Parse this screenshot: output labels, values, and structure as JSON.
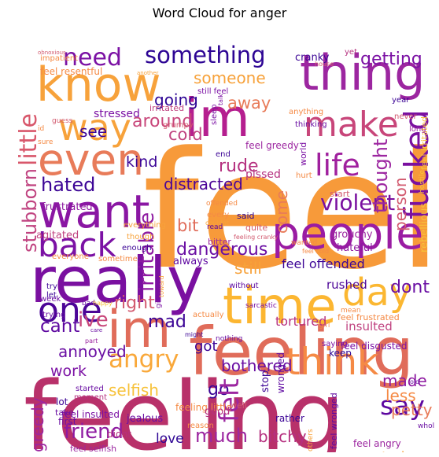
{
  "chart_data": {
    "type": "wordcloud",
    "title": "Word Cloud for anger",
    "words": [
      {
        "text": "feel",
        "color": "#f79a3a"
      },
      {
        "text": "feeling",
        "color": "#b8316a"
      },
      {
        "text": "feeling",
        "color": "#e06c5a"
      },
      {
        "text": "really",
        "color": "#7a10a0"
      },
      {
        "text": "people",
        "color": "#9a1ca3"
      },
      {
        "text": "know",
        "color": "#f7a23b"
      },
      {
        "text": "thing",
        "color": "#9c26a0"
      },
      {
        "text": "im",
        "color": "#b51f8f"
      },
      {
        "text": "im",
        "color": "#e06c5a"
      },
      {
        "text": "time",
        "color": "#fcb631"
      },
      {
        "text": "want",
        "color": "#8a16a3"
      },
      {
        "text": "even",
        "color": "#e87b59"
      },
      {
        "text": "way",
        "color": "#f7a23b"
      },
      {
        "text": "make",
        "color": "#c8467a"
      },
      {
        "text": "back",
        "color": "#7b11a4"
      },
      {
        "text": "day",
        "color": "#fbb731"
      },
      {
        "text": "one",
        "color": "#4c0597"
      },
      {
        "text": "think",
        "color": "#f58a45"
      },
      {
        "text": "life",
        "color": "#a0209e"
      },
      {
        "text": "something",
        "color": "#2d0594"
      },
      {
        "text": "need",
        "color": "#7b11a4"
      },
      {
        "text": "fucked",
        "color": "#7a10a0"
      },
      {
        "text": "angry",
        "color": "#f9a83a"
      },
      {
        "text": "say",
        "color": "#5d07a0"
      },
      {
        "text": "little",
        "color": "#d8576b"
      },
      {
        "text": "violent",
        "color": "#7a10a0"
      },
      {
        "text": "irritable",
        "color": "#8e1aa1"
      },
      {
        "text": "hated",
        "color": "#3c0596"
      },
      {
        "text": "dangerous",
        "color": "#6a0fa3"
      },
      {
        "text": "much",
        "color": "#9c26a0"
      },
      {
        "text": "friend",
        "color": "#8e1aa1"
      },
      {
        "text": "go",
        "color": "#3c0596"
      },
      {
        "text": "stubborn",
        "color": "#c04380"
      },
      {
        "text": "getting",
        "color": "#7b11a4"
      },
      {
        "text": "someone",
        "color": "#f7a23b"
      },
      {
        "text": "around",
        "color": "#c8467a"
      },
      {
        "text": "rude",
        "color": "#b5307f"
      },
      {
        "text": "distracted",
        "color": "#4c0597"
      },
      {
        "text": "kind",
        "color": "#3c0596"
      },
      {
        "text": "cold",
        "color": "#c04380"
      },
      {
        "text": "going",
        "color": "#2d0594"
      },
      {
        "text": "see",
        "color": "#3c0596"
      },
      {
        "text": "away",
        "color": "#e87b59"
      },
      {
        "text": "thought",
        "color": "#9c26a0"
      },
      {
        "text": "person",
        "color": "#d25a6f"
      },
      {
        "text": "come",
        "color": "#e87b59"
      },
      {
        "text": "bit",
        "color": "#e06c5a"
      },
      {
        "text": "ive",
        "color": "#c8467a"
      },
      {
        "text": "cant",
        "color": "#5d07a0"
      },
      {
        "text": "annoyed",
        "color": "#6a0fa3"
      },
      {
        "text": "right",
        "color": "#d25a6f"
      },
      {
        "text": "mad",
        "color": "#3c0596"
      },
      {
        "text": "dont",
        "color": "#6a0fa3"
      },
      {
        "text": "still",
        "color": "#f7a23b"
      },
      {
        "text": "feel offended",
        "color": "#3c0596"
      },
      {
        "text": "got",
        "color": "#3c0596"
      },
      {
        "text": "bothered",
        "color": "#6a0fa3"
      },
      {
        "text": "selfish",
        "color": "#f7c23b"
      },
      {
        "text": "work",
        "color": "#7b11a4"
      },
      {
        "text": "made",
        "color": "#8e1aa1"
      },
      {
        "text": "less",
        "color": "#f58a45"
      },
      {
        "text": "petty",
        "color": "#e87b59"
      },
      {
        "text": "felt",
        "color": "#9c26a0"
      },
      {
        "text": "greedy",
        "color": "#9c26a0"
      },
      {
        "text": "bitchy",
        "color": "#b5307f"
      },
      {
        "text": "love",
        "color": "#2d0594"
      },
      {
        "text": "today",
        "color": "#f7a23b"
      },
      {
        "text": "tortured",
        "color": "#b5307f"
      },
      {
        "text": "insulted",
        "color": "#c04380"
      },
      {
        "text": "rushed",
        "color": "#4c0597"
      },
      {
        "text": "stressed",
        "color": "#7b11a4"
      },
      {
        "text": "cranky",
        "color": "#3c0596"
      },
      {
        "text": "grouchy",
        "color": "#9c26a0"
      },
      {
        "text": "hateful",
        "color": "#8e1aa1"
      },
      {
        "text": "frustrated",
        "color": "#8e1aa1"
      },
      {
        "text": "agitated",
        "color": "#c04380"
      },
      {
        "text": "always",
        "color": "#5d07a0"
      },
      {
        "text": "pissed",
        "color": "#b5307f"
      },
      {
        "text": "feel resentful",
        "color": "#f58a45"
      },
      {
        "text": "impatient",
        "color": "#f58a45"
      },
      {
        "text": "irritated",
        "color": "#c04380"
      },
      {
        "text": "grumpy",
        "color": "#d25a6f"
      },
      {
        "text": "still feel",
        "color": "#7b11a4"
      },
      {
        "text": "feel greedy",
        "color": "#9c26a0"
      },
      {
        "text": "feel irritated",
        "color": "#f7c23b"
      },
      {
        "text": "rebellious",
        "color": "#f7c23b"
      },
      {
        "text": "feel frustrated",
        "color": "#f58a45"
      },
      {
        "text": "feel disgusted",
        "color": "#7b11a4"
      },
      {
        "text": "feel insulted",
        "color": "#7b11a4"
      },
      {
        "text": "feel wronged",
        "color": "#5d07a0"
      },
      {
        "text": "feel angry",
        "color": "#9c26a0"
      },
      {
        "text": "feeling little",
        "color": "#f58a45"
      },
      {
        "text": "feel selfish",
        "color": "#9c26a0"
      },
      {
        "text": "wronged",
        "color": "#5d07a0"
      },
      {
        "text": "jealous",
        "color": "#6a0fa3"
      },
      {
        "text": "rather",
        "color": "#3c0596"
      },
      {
        "text": "good",
        "color": "#b5307f"
      },
      {
        "text": "stop",
        "color": "#3c0596"
      },
      {
        "text": "well",
        "color": "#d25a6f"
      },
      {
        "text": "year",
        "color": "#3c0596"
      },
      {
        "text": "never",
        "color": "#d25a6f"
      },
      {
        "text": "long",
        "color": "#9c26a0"
      },
      {
        "text": "thinking",
        "color": "#6a0fa3"
      },
      {
        "text": "anything",
        "color": "#f58a45"
      },
      {
        "text": "world",
        "color": "#7b11a4"
      },
      {
        "text": "hurt",
        "color": "#f58a45"
      },
      {
        "text": "start",
        "color": "#d25a6f"
      },
      {
        "text": "said",
        "color": "#2d0594"
      },
      {
        "text": "quite",
        "color": "#d25a6f"
      },
      {
        "text": "wanted",
        "color": "#f58a45"
      },
      {
        "text": "every",
        "color": "#f58a45"
      },
      {
        "text": "everything",
        "color": "#f7a23b"
      },
      {
        "text": "though",
        "color": "#f7a23b"
      },
      {
        "text": "enough",
        "color": "#3c0596"
      },
      {
        "text": "bitter",
        "color": "#9c26a0"
      },
      {
        "text": "sometime",
        "color": "#f58a45"
      },
      {
        "text": "everyone",
        "color": "#f58a45"
      },
      {
        "text": "without",
        "color": "#5d07a0"
      },
      {
        "text": "try",
        "color": "#3c0596"
      },
      {
        "text": "let",
        "color": "#3c0596"
      },
      {
        "text": "week",
        "color": "#6a0fa3"
      },
      {
        "text": "trying",
        "color": "#6a0fa3"
      },
      {
        "text": "bad",
        "color": "#6a0fa3"
      },
      {
        "text": "happy",
        "color": "#f7c23b"
      },
      {
        "text": "actually",
        "color": "#f58a45"
      },
      {
        "text": "sarcastic",
        "color": "#7b11a4"
      },
      {
        "text": "mean",
        "color": "#f58a45"
      },
      {
        "text": "guess",
        "color": "#d25a6f"
      },
      {
        "text": "saying",
        "color": "#7b11a4"
      },
      {
        "text": "keep",
        "color": "#2d0594"
      },
      {
        "text": "girl",
        "color": "#f58a45"
      },
      {
        "text": "started",
        "color": "#6a0fa3"
      },
      {
        "text": "moment",
        "color": "#b5307f"
      },
      {
        "text": "lot",
        "color": "#3c0596"
      },
      {
        "text": "take",
        "color": "#6a0fa3"
      },
      {
        "text": "first",
        "color": "#6a0fa3"
      },
      {
        "text": "didnt",
        "color": "#b5307f"
      },
      {
        "text": "reason",
        "color": "#f58a45"
      },
      {
        "text": "nothing",
        "color": "#6a0fa3"
      },
      {
        "text": "might",
        "color": "#3c0596"
      },
      {
        "text": "care",
        "color": "#6a0fa3"
      },
      {
        "text": "part",
        "color": "#9c26a0"
      },
      {
        "text": "others",
        "color": "#f7a23b"
      },
      {
        "text": "whole",
        "color": "#6a0fa3"
      },
      {
        "text": "old",
        "color": "#6a0fa3"
      },
      {
        "text": "yet",
        "color": "#b5307f"
      },
      {
        "text": "sleep",
        "color": "#7b11a4"
      },
      {
        "text": "talk",
        "color": "#7b11a4"
      },
      {
        "text": "house",
        "color": "#d25a6f"
      },
      {
        "text": "hostile",
        "color": "#f7c23b"
      },
      {
        "text": "offended",
        "color": "#f58a45"
      },
      {
        "text": "couldnt",
        "color": "#f7a23b"
      },
      {
        "text": "feeling cranky",
        "color": "#d25a6f"
      },
      {
        "text": "give",
        "color": "#7b11a4"
      },
      {
        "text": "feel cold",
        "color": "#f58a45"
      },
      {
        "text": "end",
        "color": "#3c0596"
      },
      {
        "text": "read",
        "color": "#5d07a0"
      },
      {
        "text": "id",
        "color": "#f58a45"
      },
      {
        "text": "obnoxious",
        "color": "#d25a6f"
      },
      {
        "text": "another",
        "color": "#f7a23b"
      },
      {
        "text": "sure",
        "color": "#f58a45"
      },
      {
        "text": "toward",
        "color": "#f7a23b"
      }
    ]
  }
}
